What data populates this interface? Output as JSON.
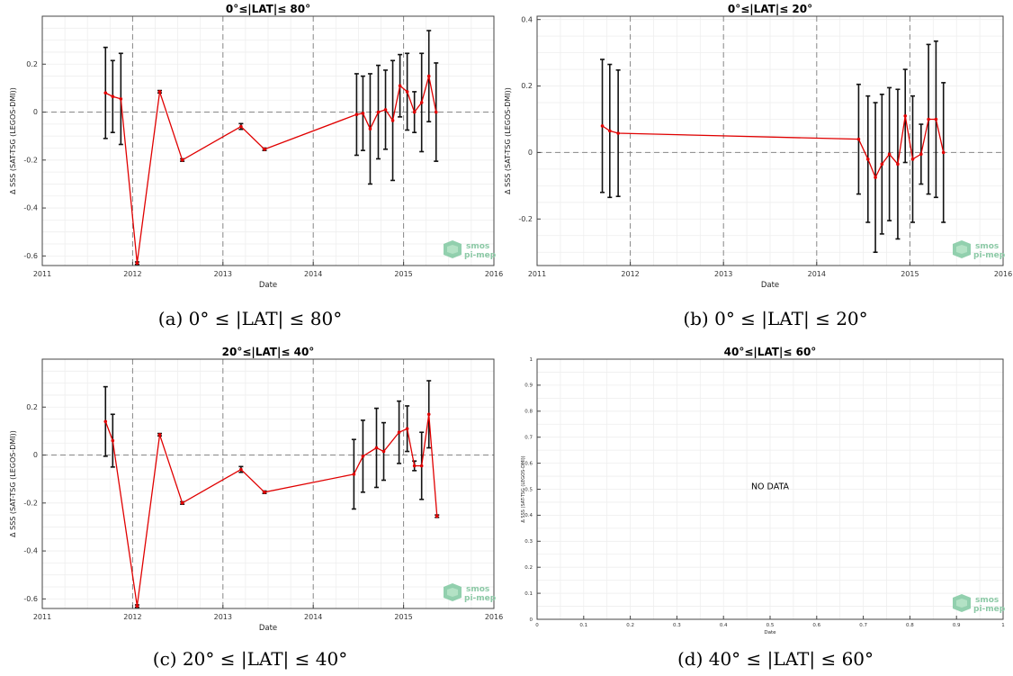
{
  "chart_data": [
    {
      "type": "line",
      "title": "0°≤|LAT|≤ 80°",
      "caption": "(a) 0° ≤ |LAT| ≤ 80°",
      "xlabel": "Date",
      "ylabel": "Δ SSS (SAT-TSG (LEGOS-DMI))",
      "xlim": [
        2011,
        2016
      ],
      "ylim": [
        -0.64,
        0.4
      ],
      "xticks": [
        "2011",
        "2012",
        "2013",
        "2014",
        "2015",
        "2016"
      ],
      "yticks": [
        "-0.6",
        "-0.4",
        "-0.2",
        "0",
        "0.2"
      ],
      "grid": true,
      "x": [
        2011.7,
        2011.78,
        2011.87,
        2012.05,
        2012.3,
        2012.55,
        2013.2,
        2013.46,
        2014.48,
        2014.55,
        2014.63,
        2014.72,
        2014.8,
        2014.88,
        2014.96,
        2015.04,
        2015.12,
        2015.2,
        2015.28,
        2015.36
      ],
      "y": [
        0.08,
        0.065,
        0.055,
        -0.63,
        0.085,
        -0.2,
        -0.06,
        -0.155,
        -0.01,
        -0.005,
        -0.07,
        0.0,
        0.01,
        -0.035,
        0.11,
        0.085,
        0.0,
        0.04,
        0.15,
        0.0
      ],
      "err": [
        0.19,
        0.15,
        0.19,
        0.005,
        0.005,
        0.005,
        0.012,
        0.005,
        0.17,
        0.155,
        0.23,
        0.195,
        0.165,
        0.25,
        0.13,
        0.16,
        0.085,
        0.205,
        0.19,
        0.205
      ],
      "series_color": "#e00000",
      "err_color": "#111111",
      "logo": [
        "smos",
        "pi-mep"
      ]
    },
    {
      "type": "line",
      "title": "0°≤|LAT|≤ 20°",
      "caption": "(b) 0° ≤ |LAT| ≤ 20°",
      "xlabel": "Date",
      "ylabel": "Δ SSS (SAT-TSG (LEGOS-DMI))",
      "xlim": [
        2011,
        2016
      ],
      "ylim": [
        -0.34,
        0.41
      ],
      "xticks": [
        "2011",
        "2012",
        "2013",
        "2014",
        "2015",
        "2016"
      ],
      "yticks": [
        "-0.2",
        "0",
        "0.2",
        "0.4"
      ],
      "grid": true,
      "x": [
        2011.7,
        2011.78,
        2011.87,
        2014.45,
        2014.55,
        2014.63,
        2014.7,
        2014.78,
        2014.87,
        2014.95,
        2015.03,
        2015.12,
        2015.2,
        2015.28,
        2015.36
      ],
      "y": [
        0.08,
        0.065,
        0.058,
        0.04,
        -0.02,
        -0.075,
        -0.035,
        -0.005,
        -0.035,
        0.11,
        -0.02,
        -0.005,
        0.1,
        0.1,
        0.0
      ],
      "err": [
        0.2,
        0.2,
        0.19,
        0.165,
        0.19,
        0.225,
        0.21,
        0.2,
        0.225,
        0.14,
        0.19,
        0.09,
        0.225,
        0.235,
        0.21
      ],
      "series_color": "#e00000",
      "err_color": "#111111",
      "logo": [
        "smos",
        "pi-mep"
      ]
    },
    {
      "type": "line",
      "title": "20°≤|LAT|≤ 40°",
      "caption": "(c) 20° ≤ |LAT| ≤ 40°",
      "xlabel": "Date",
      "ylabel": "Δ SSS (SAT-TSG (LEGOS-DMI))",
      "xlim": [
        2011,
        2016
      ],
      "ylim": [
        -0.64,
        0.4
      ],
      "xticks": [
        "2011",
        "2012",
        "2013",
        "2014",
        "2015",
        "2016"
      ],
      "yticks": [
        "-0.6",
        "-0.4",
        "-0.2",
        "0",
        "0.2"
      ],
      "grid": true,
      "x": [
        2011.7,
        2011.78,
        2012.05,
        2012.3,
        2012.55,
        2013.2,
        2013.46,
        2014.45,
        2014.55,
        2014.7,
        2014.78,
        2014.95,
        2015.04,
        2015.12,
        2015.2,
        2015.28,
        2015.37
      ],
      "y": [
        0.14,
        0.06,
        -0.63,
        0.085,
        -0.2,
        -0.06,
        -0.155,
        -0.08,
        -0.005,
        0.03,
        0.015,
        0.095,
        0.11,
        -0.045,
        -0.045,
        0.17,
        -0.255
      ],
      "err": [
        0.145,
        0.11,
        0.005,
        0.005,
        0.005,
        0.012,
        0.005,
        0.145,
        0.15,
        0.165,
        0.12,
        0.13,
        0.095,
        0.02,
        0.14,
        0.14,
        0.005
      ],
      "series_color": "#e00000",
      "err_color": "#111111",
      "logo": [
        "smos",
        "pi-mep"
      ]
    },
    {
      "type": "line",
      "title": "40°≤|LAT|≤ 60°",
      "caption": "(d) 40° ≤ |LAT| ≤ 60°",
      "xlabel": "Date",
      "ylabel": "Δ SSS (SAT-TSG (LEGOS-DMI))",
      "xlim": [
        0,
        1
      ],
      "ylim": [
        0,
        1
      ],
      "xticks": [
        "0",
        "0.1",
        "0.2",
        "0.3",
        "0.4",
        "0.5",
        "0.6",
        "0.7",
        "0.8",
        "0.9",
        "1"
      ],
      "yticks": [
        "0",
        "0.1",
        "0.2",
        "0.3",
        "0.4",
        "0.5",
        "0.6",
        "0.7",
        "0.8",
        "0.9",
        "1"
      ],
      "grid": true,
      "note": "NO DATA",
      "x": [],
      "y": [],
      "err": [],
      "logo": [
        "smos",
        "pi-mep"
      ]
    }
  ]
}
